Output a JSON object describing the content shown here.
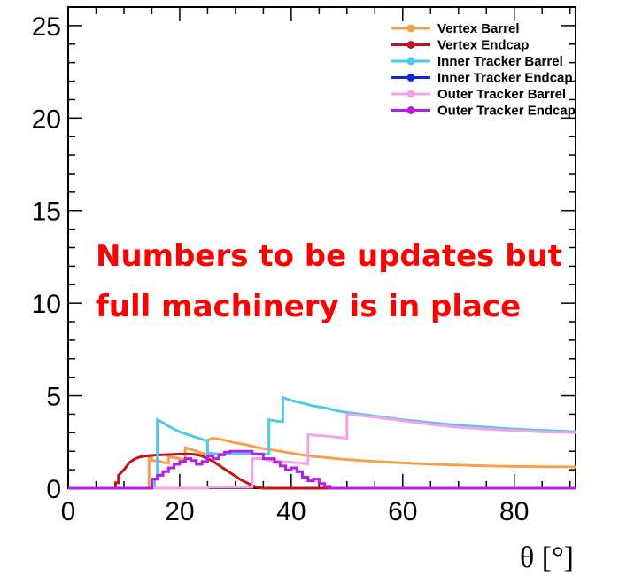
{
  "chart_data": {
    "type": "line",
    "xlabel": "θ [°]",
    "ylabel": "",
    "xlim": [
      0,
      91
    ],
    "ylim": [
      0,
      26
    ],
    "xticks": [
      0,
      20,
      40,
      60,
      80
    ],
    "yticks": [
      0,
      5,
      10,
      15,
      20,
      25
    ],
    "legend_position": "top-right",
    "annotation": [
      "Numbers to be updates but",
      "full machinery is in place"
    ],
    "annotation_color": "#ff0000",
    "series": [
      {
        "name": "Vertex Barrel",
        "color": "#f7a04a",
        "points": [
          [
            0,
            0
          ],
          [
            14.5,
            0
          ],
          [
            14.5,
            1.7
          ],
          [
            15,
            1.7
          ],
          [
            15,
            1.5
          ],
          [
            16,
            1.5
          ],
          [
            17,
            1.4
          ],
          [
            18,
            1.35
          ],
          [
            18,
            1.7
          ],
          [
            19,
            1.65
          ],
          [
            20,
            1.6
          ],
          [
            21,
            1.5
          ],
          [
            21,
            2.2
          ],
          [
            22,
            2.1
          ],
          [
            23,
            2.0
          ],
          [
            24,
            1.9
          ],
          [
            25,
            1.85
          ],
          [
            25,
            2.6
          ],
          [
            26,
            2.7
          ],
          [
            28,
            2.6
          ],
          [
            30,
            2.45
          ],
          [
            32,
            2.35
          ],
          [
            34,
            2.2
          ],
          [
            36,
            2.1
          ],
          [
            38,
            2.0
          ],
          [
            40,
            1.9
          ],
          [
            42,
            1.8
          ],
          [
            44,
            1.72
          ],
          [
            46,
            1.66
          ],
          [
            50,
            1.55
          ],
          [
            55,
            1.45
          ],
          [
            60,
            1.37
          ],
          [
            65,
            1.3
          ],
          [
            70,
            1.25
          ],
          [
            75,
            1.21
          ],
          [
            80,
            1.18
          ],
          [
            85,
            1.16
          ],
          [
            91,
            1.15
          ]
        ]
      },
      {
        "name": "Vertex Endcap",
        "color": "#c0141c",
        "points": [
          [
            0,
            0
          ],
          [
            8.5,
            0
          ],
          [
            8.5,
            0.3
          ],
          [
            9,
            0.3
          ],
          [
            9,
            0.7
          ],
          [
            10,
            1.0
          ],
          [
            11,
            1.4
          ],
          [
            12,
            1.6
          ],
          [
            13,
            1.7
          ],
          [
            14,
            1.75
          ],
          [
            16,
            1.8
          ],
          [
            18,
            1.82
          ],
          [
            20,
            1.85
          ],
          [
            22,
            1.85
          ],
          [
            23,
            1.82
          ],
          [
            24,
            1.75
          ],
          [
            25,
            1.6
          ],
          [
            26,
            1.45
          ],
          [
            27,
            1.25
          ],
          [
            28,
            1.05
          ],
          [
            29,
            0.85
          ],
          [
            30,
            0.65
          ],
          [
            31,
            0.45
          ],
          [
            32,
            0.3
          ],
          [
            33,
            0.15
          ],
          [
            34,
            0.05
          ],
          [
            35,
            0
          ],
          [
            91,
            0
          ]
        ]
      },
      {
        "name": "Inner Tracker Barrel",
        "color": "#4ec8f0",
        "points": [
          [
            0,
            0
          ],
          [
            15.5,
            0
          ],
          [
            15.5,
            0.5
          ],
          [
            16,
            0.5
          ],
          [
            16,
            3.7
          ],
          [
            17,
            3.55
          ],
          [
            18,
            3.35
          ],
          [
            19,
            3.2
          ],
          [
            20,
            3.05
          ],
          [
            21,
            2.95
          ],
          [
            22,
            2.85
          ],
          [
            23,
            2.75
          ],
          [
            24,
            2.65
          ],
          [
            25,
            2.55
          ],
          [
            25,
            1.9
          ],
          [
            27,
            1.85
          ],
          [
            29,
            1.85
          ],
          [
            31,
            1.85
          ],
          [
            33,
            1.85
          ],
          [
            35,
            1.85
          ],
          [
            36,
            1.85
          ],
          [
            36,
            3.7
          ],
          [
            37,
            3.65
          ],
          [
            38,
            3.6
          ],
          [
            38.5,
            3.6
          ],
          [
            38.5,
            4.9
          ],
          [
            40,
            4.75
          ],
          [
            42,
            4.6
          ],
          [
            44,
            4.45
          ],
          [
            46,
            4.35
          ],
          [
            48,
            4.2
          ],
          [
            50,
            4.1
          ],
          [
            60,
            3.7
          ],
          [
            70,
            3.4
          ],
          [
            80,
            3.2
          ],
          [
            91,
            3.05
          ]
        ]
      },
      {
        "name": "Inner Tracker Endcap",
        "color": "#0a28e0",
        "points": []
      },
      {
        "name": "Outer Tracker Barrel",
        "color": "#f7a0e6",
        "points": [
          [
            0,
            0
          ],
          [
            25,
            0
          ],
          [
            25,
            0.05
          ],
          [
            33,
            0.05
          ],
          [
            33,
            1.6
          ],
          [
            35,
            1.6
          ],
          [
            36,
            1.5
          ],
          [
            38,
            1.45
          ],
          [
            40,
            1.4
          ],
          [
            42,
            1.35
          ],
          [
            43,
            1.3
          ],
          [
            43,
            2.9
          ],
          [
            45,
            2.85
          ],
          [
            47,
            2.8
          ],
          [
            50,
            2.7
          ],
          [
            50,
            4.0
          ],
          [
            55,
            3.85
          ],
          [
            60,
            3.65
          ],
          [
            65,
            3.45
          ],
          [
            70,
            3.3
          ],
          [
            75,
            3.2
          ],
          [
            80,
            3.12
          ],
          [
            85,
            3.05
          ],
          [
            91,
            3.0
          ]
        ]
      },
      {
        "name": "Outer Tracker Endcap",
        "color": "#b41ee6",
        "points": [
          [
            0,
            0
          ],
          [
            15,
            0
          ],
          [
            15,
            0.5
          ],
          [
            16,
            0.5
          ],
          [
            16,
            0.7
          ],
          [
            17,
            0.7
          ],
          [
            17,
            0.9
          ],
          [
            18,
            0.9
          ],
          [
            18,
            1.1
          ],
          [
            19,
            1.1
          ],
          [
            19,
            1.3
          ],
          [
            20,
            1.3
          ],
          [
            20,
            1.45
          ],
          [
            21,
            1.45
          ],
          [
            21,
            1.6
          ],
          [
            22,
            1.6
          ],
          [
            22,
            1.5
          ],
          [
            23,
            1.5
          ],
          [
            23,
            1.3
          ],
          [
            24,
            1.3
          ],
          [
            24,
            1.45
          ],
          [
            25,
            1.45
          ],
          [
            25,
            1.75
          ],
          [
            26,
            1.75
          ],
          [
            26,
            1.6
          ],
          [
            27,
            1.6
          ],
          [
            27,
            1.8
          ],
          [
            28,
            1.8
          ],
          [
            28,
            1.95
          ],
          [
            29,
            1.95
          ],
          [
            29,
            2.0
          ],
          [
            33,
            2.0
          ],
          [
            33,
            1.85
          ],
          [
            35,
            1.85
          ],
          [
            35,
            1.6
          ],
          [
            37,
            1.6
          ],
          [
            37,
            1.4
          ],
          [
            38,
            1.4
          ],
          [
            38,
            1.2
          ],
          [
            39,
            1.2
          ],
          [
            39,
            1.0
          ],
          [
            40,
            1.0
          ],
          [
            40,
            1.1
          ],
          [
            41,
            1.1
          ],
          [
            41,
            0.9
          ],
          [
            42,
            0.9
          ],
          [
            42,
            0.6
          ],
          [
            43,
            0.6
          ],
          [
            43,
            0.4
          ],
          [
            44,
            0.4
          ],
          [
            44,
            0.5
          ],
          [
            45,
            0.5
          ],
          [
            45,
            0.25
          ],
          [
            46,
            0.25
          ],
          [
            46,
            0.1
          ],
          [
            47,
            0.1
          ],
          [
            47,
            0
          ],
          [
            91,
            0
          ]
        ]
      }
    ]
  }
}
